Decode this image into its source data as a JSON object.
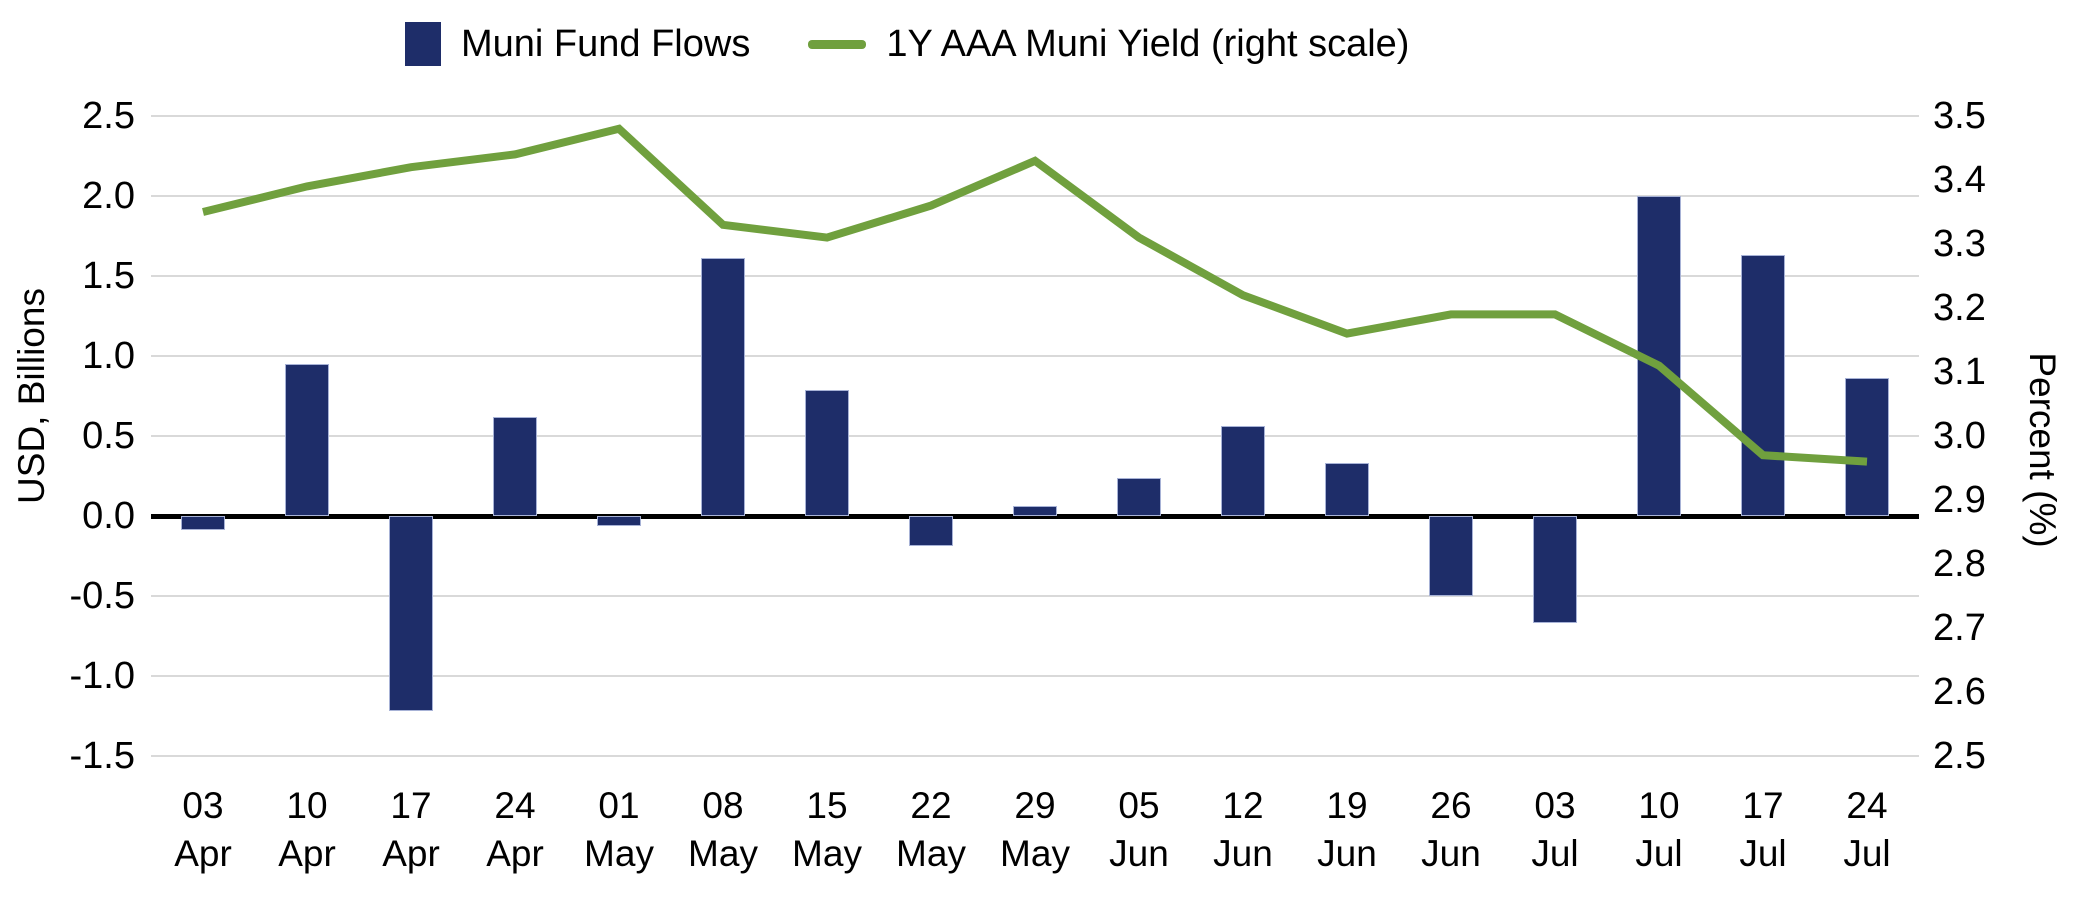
{
  "legend": [
    {
      "label": "Muni Fund Flows",
      "marker": "square",
      "color": "#1E2D69"
    },
    {
      "label": "1Y AAA Muni Yield (right scale)",
      "marker": "line",
      "color": "#70A03E"
    }
  ],
  "left_axis": {
    "title": "USD, Billions",
    "ticks": [
      "2.5",
      "2.0",
      "1.5",
      "1.0",
      "0.5",
      "0.0",
      "-0.5",
      "-1.0",
      "-1.5"
    ]
  },
  "right_axis": {
    "title": "Percent (%)",
    "ticks": [
      "3.5",
      "3.4",
      "3.3",
      "3.2",
      "3.1",
      "3.0",
      "2.9",
      "2.8",
      "2.7",
      "2.6",
      "2.5"
    ]
  },
  "colors": {
    "bar": "#1E2D69",
    "bar_border": "#A7B2D6",
    "line": "#70A03E",
    "grid": "#D9D9D9",
    "zero_line": "#000000"
  },
  "chart_data": {
    "type": "bar+line combo",
    "grid": true,
    "legend_position": "top-center",
    "categories": [
      {
        "day": "03",
        "month": "Apr"
      },
      {
        "day": "10",
        "month": "Apr"
      },
      {
        "day": "17",
        "month": "Apr"
      },
      {
        "day": "24",
        "month": "Apr"
      },
      {
        "day": "01",
        "month": "May"
      },
      {
        "day": "08",
        "month": "May"
      },
      {
        "day": "15",
        "month": "May"
      },
      {
        "day": "22",
        "month": "May"
      },
      {
        "day": "29",
        "month": "May"
      },
      {
        "day": "05",
        "month": "Jun"
      },
      {
        "day": "12",
        "month": "Jun"
      },
      {
        "day": "19",
        "month": "Jun"
      },
      {
        "day": "26",
        "month": "Jun"
      },
      {
        "day": "03",
        "month": "Jul"
      },
      {
        "day": "10",
        "month": "Jul"
      },
      {
        "day": "17",
        "month": "Jul"
      },
      {
        "day": "24",
        "month": "Jul"
      }
    ],
    "series": [
      {
        "name": "Muni Fund Flows",
        "type": "bar",
        "axis": "left",
        "unit": "USD, Billions",
        "values": [
          -0.09,
          0.95,
          -1.22,
          0.62,
          -0.06,
          1.61,
          0.79,
          -0.19,
          0.06,
          0.24,
          0.56,
          0.33,
          -0.5,
          -0.67,
          2.0,
          1.63,
          0.86
        ]
      },
      {
        "name": "1Y AAA Muni Yield (right scale)",
        "type": "line",
        "axis": "right",
        "unit": "Percent (%)",
        "values": [
          3.35,
          3.39,
          3.42,
          3.44,
          3.48,
          3.33,
          3.31,
          3.36,
          3.43,
          3.31,
          3.22,
          3.16,
          3.19,
          3.19,
          3.11,
          2.97,
          2.96
        ]
      }
    ],
    "left_ylim": [
      -1.5,
      2.5
    ],
    "left_step": 0.5,
    "right_ylim": [
      2.5,
      3.5
    ],
    "right_step": 0.1
  }
}
